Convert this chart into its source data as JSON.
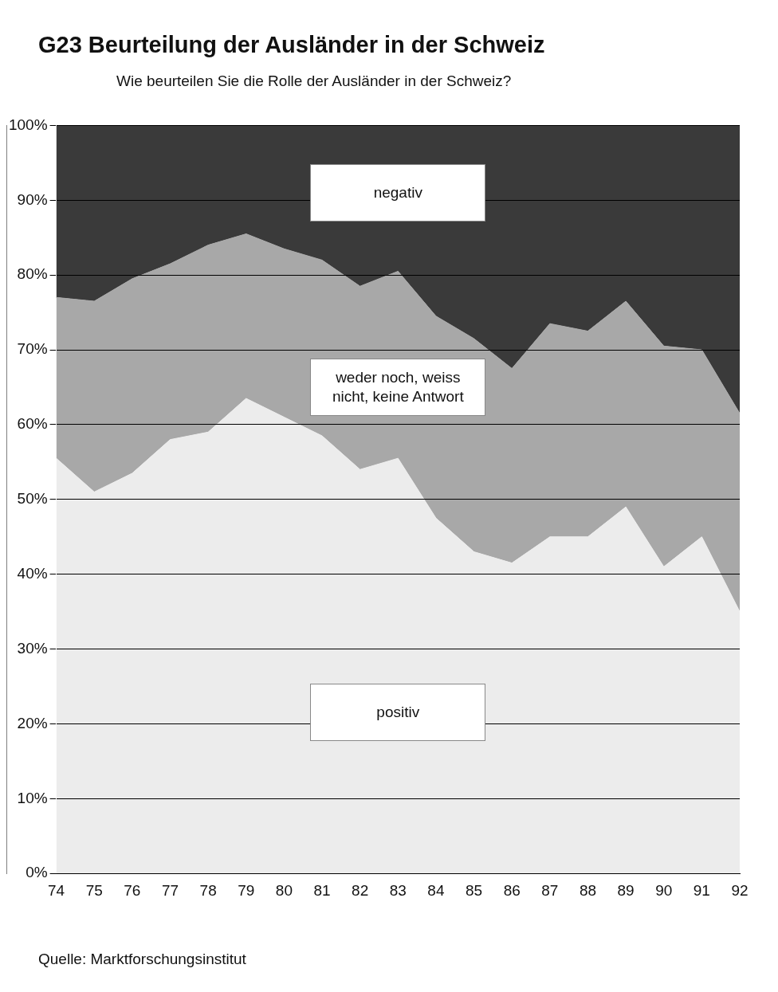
{
  "chart_data": {
    "type": "area",
    "title": "G23 Beurteilung der Ausländer in der Schweiz",
    "subtitle": "Wie beurteilen Sie die Rolle der Ausländer in der Schweiz?",
    "categories": [
      "74",
      "75",
      "76",
      "77",
      "78",
      "79",
      "80",
      "81",
      "82",
      "83",
      "84",
      "85",
      "86",
      "87",
      "88",
      "89",
      "90",
      "91",
      "92"
    ],
    "stacked": true,
    "series": [
      {
        "name": "positiv",
        "color": "#ececec",
        "values": [
          55.5,
          51,
          53.5,
          58,
          59,
          63.5,
          61,
          58.5,
          54,
          55.5,
          47.5,
          43,
          41.5,
          45,
          45,
          49,
          41,
          45,
          35
        ]
      },
      {
        "name": "weder noch, weiss nicht, keine Antwort",
        "color": "#a8a8a8",
        "values": [
          21.5,
          25.5,
          26,
          23.5,
          25,
          22,
          22.5,
          23.5,
          24.5,
          25,
          27,
          28.5,
          26,
          28.5,
          27.5,
          27.5,
          29.5,
          25,
          26.5
        ]
      },
      {
        "name": "negativ",
        "color": "#3a3a3a",
        "values": [
          23,
          23.5,
          20.5,
          18.5,
          16,
          14.5,
          16.5,
          18,
          21.5,
          19.5,
          25.5,
          28.5,
          32.5,
          26.5,
          27.5,
          23.5,
          29.5,
          30,
          38.5
        ]
      }
    ],
    "ylim": [
      0,
      100
    ],
    "yticks": [
      {
        "value": 0,
        "label": "0%"
      },
      {
        "value": 10,
        "label": "10%"
      },
      {
        "value": 20,
        "label": "20%"
      },
      {
        "value": 30,
        "label": "30%"
      },
      {
        "value": 40,
        "label": "40%"
      },
      {
        "value": 50,
        "label": "50%"
      },
      {
        "value": 60,
        "label": "60%"
      },
      {
        "value": 70,
        "label": "70%"
      },
      {
        "value": 80,
        "label": "80%"
      },
      {
        "value": 90,
        "label": "90%"
      },
      {
        "value": 100,
        "label": "100%"
      }
    ],
    "grid": "y",
    "legend": false,
    "annotations": [
      "Quelle: Marktforschungsinstitut"
    ]
  }
}
